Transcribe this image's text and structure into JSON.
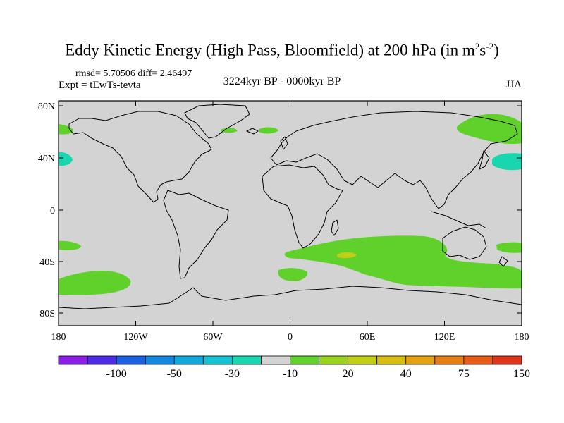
{
  "title": {
    "main": "Eddy Kinetic Energy (High Pass, Bloomfield) at 200 hPa (in m",
    "sup1": "2",
    "mid": "s",
    "sup2": "-2",
    "close": ")"
  },
  "stats": "rmsd= 5.70506 diff= 2.46497",
  "expt": "Expt = tEwTs-tevta",
  "period": "3224kyr BP - 0000kyr BP",
  "season": "JJA",
  "map": {
    "lat_ticks": [
      "80N",
      "40N",
      "0",
      "40S",
      "80S"
    ],
    "lon_ticks": [
      "180",
      "120W",
      "60W",
      "0",
      "60E",
      "120E",
      "180"
    ],
    "background_color": "#d3d3d3",
    "coastline_color": "#000000"
  },
  "colorbar": {
    "colors": [
      "#8a1ee6",
      "#4d2ae6",
      "#1c5fe0",
      "#1287e0",
      "#10a9dc",
      "#13c3d2",
      "#18d6b0",
      "#d3d3d3",
      "#5fd12a",
      "#9ad31c",
      "#c1cf14",
      "#d7bd10",
      "#e3a210",
      "#e57f12",
      "#e45a16",
      "#e0341a"
    ],
    "labels": [
      "-100",
      "-50",
      "-30",
      "-10",
      "20",
      "40",
      "75",
      "150"
    ]
  }
}
